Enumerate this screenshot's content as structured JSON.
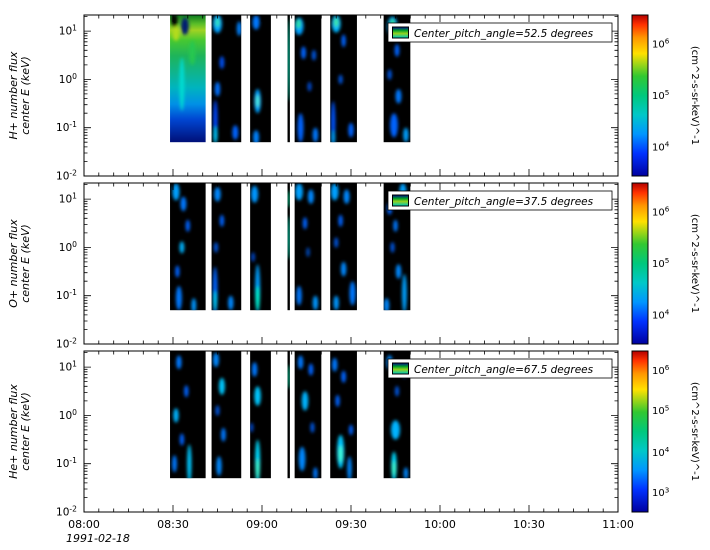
{
  "figure": {
    "background": "#ffffff",
    "axis_color": "#000000",
    "x_axis": {
      "tick_labels": [
        "08:00",
        "08:30",
        "09:00",
        "09:30",
        "10:00",
        "10:30",
        "11:00"
      ],
      "date_label": "1991-02-18",
      "duration_minutes": 180,
      "major_tick_minutes": 30,
      "minor_tick_minutes": 5
    },
    "colorbar_gradient": [
      [
        "0",
        "#b40000"
      ],
      [
        "0.06",
        "#ff3200"
      ],
      [
        "0.14",
        "#ff9600"
      ],
      [
        "0.24",
        "#ffe100"
      ],
      [
        "0.38",
        "#32c832"
      ],
      [
        "0.5",
        "#00c87d"
      ],
      [
        "0.62",
        "#00c8c8"
      ],
      [
        "0.74",
        "#0096ff"
      ],
      [
        "0.86",
        "#0032ff"
      ],
      [
        "1",
        "#0000a0"
      ]
    ],
    "legend_icon_gradient": [
      [
        "0",
        "#001e82"
      ],
      [
        "0.3",
        "#00a028"
      ],
      [
        "0.6",
        "#96d21e"
      ],
      [
        "1",
        "#00c8b4"
      ]
    ]
  },
  "chart_data": [
    {
      "type": "heatmap",
      "panel_id": "h-plus",
      "species": "H+",
      "ylabel_lines": [
        "H+ number flux",
        "center E (keV)"
      ],
      "y_scale": "log",
      "ylim_log10": [
        -2,
        1.3333
      ],
      "y_tick_exponents": [
        1,
        0,
        -1,
        -2
      ],
      "legend_label": "Center_pitch_angle=52.5 degrees",
      "colorbar": {
        "unit_label": "(cm^2-s-sr-keV)^-1",
        "tick_exponents": [
          6,
          5,
          4
        ],
        "tick_fracs_from_top": [
          0.18,
          0.5,
          0.82
        ]
      },
      "segments_min": [
        [
          29,
          41
        ],
        [
          43,
          53
        ],
        [
          56,
          63
        ],
        [
          68.6,
          69.4
        ],
        [
          71,
          80
        ],
        [
          83,
          92
        ],
        [
          101,
          110
        ]
      ],
      "segment_bottom_log10": -1.3,
      "segment_fill_gradient": {
        "segment": 0,
        "stops": [
          [
            "0",
            "#0a7820"
          ],
          [
            "0.07",
            "#5abe28"
          ],
          [
            "0.12",
            "#a0d223"
          ],
          [
            "0.2",
            "#46c832"
          ],
          [
            "0.32",
            "#1eb45a"
          ],
          [
            "0.45",
            "#0fb48c"
          ],
          [
            "0.57",
            "#00b4be"
          ],
          [
            "0.7",
            "#0090e6"
          ],
          [
            "0.82",
            "#0046d2"
          ],
          [
            "1",
            "#000f78"
          ]
        ]
      },
      "blob_format": [
        "t_minutes_from_0800",
        "log10_energy_keV",
        "width_minutes",
        "height_decades",
        "color"
      ],
      "blobs": [
        [
          30.5,
          1.22,
          2,
          0.28,
          "#000000"
        ],
        [
          34,
          1.1,
          2.6,
          0.35,
          "#001a70"
        ],
        [
          31,
          0.95,
          2.2,
          0.3,
          "#b4dc1e"
        ],
        [
          33,
          -0.1,
          1.6,
          1.1,
          "#00dcd2"
        ],
        [
          36.5,
          0.55,
          2.0,
          0.5,
          "#28c850"
        ],
        [
          45,
          1.15,
          3,
          0.38,
          "#00a0ff"
        ],
        [
          45,
          1.18,
          1.6,
          0.2,
          "#30e0c0"
        ],
        [
          46.5,
          0.35,
          1.6,
          0.26,
          "#0050f0"
        ],
        [
          45,
          -0.2,
          1.8,
          0.3,
          "#0070ff"
        ],
        [
          44.3,
          -0.85,
          1.5,
          0.85,
          "#0046ff"
        ],
        [
          44.3,
          -1.15,
          1.4,
          0.35,
          "#00c8ff"
        ],
        [
          51,
          -1.1,
          2,
          0.3,
          "#0064ff"
        ],
        [
          52.3,
          1.05,
          1.6,
          0.3,
          "#0082ff"
        ],
        [
          58,
          1.18,
          2.4,
          0.3,
          "#0078ff"
        ],
        [
          58.5,
          -0.45,
          2.2,
          0.5,
          "#00a0ff"
        ],
        [
          58.5,
          -0.45,
          1.2,
          0.26,
          "#50f0dc"
        ],
        [
          58,
          -1.2,
          2,
          0.3,
          "#0082ff"
        ],
        [
          69,
          0.4,
          0.8,
          1.7,
          "#00dcb4"
        ],
        [
          72.5,
          1.1,
          3,
          0.36,
          "#00a0ff"
        ],
        [
          72.3,
          1.15,
          1.6,
          0.2,
          "#2be2a0"
        ],
        [
          74,
          0.55,
          1.7,
          0.26,
          "#0064ff"
        ],
        [
          77.5,
          0.5,
          1.5,
          0.22,
          "#0055dd"
        ],
        [
          76,
          -0.15,
          1.4,
          0.2,
          "#0046c8"
        ],
        [
          73,
          -1.0,
          2,
          0.6,
          "#0064ff"
        ],
        [
          78,
          -1.15,
          1.8,
          0.3,
          "#0078ff"
        ],
        [
          85,
          1.15,
          3,
          0.36,
          "#00b4ff"
        ],
        [
          85,
          1.18,
          1.6,
          0.2,
          "#3ce6a0"
        ],
        [
          87.5,
          0.8,
          1.5,
          0.26,
          "#0064ff"
        ],
        [
          86.5,
          0.0,
          1.4,
          0.2,
          "#0055dd"
        ],
        [
          84,
          -0.9,
          1.5,
          0.9,
          "#0055ff"
        ],
        [
          84,
          -1.2,
          1.4,
          0.3,
          "#00a0ff"
        ],
        [
          90,
          -1.05,
          1.8,
          0.3,
          "#0064ff"
        ],
        [
          104,
          1.1,
          3.4,
          0.4,
          "#00a0ff"
        ],
        [
          104,
          1.15,
          1.8,
          0.22,
          "#2bd98c"
        ],
        [
          105.5,
          0.6,
          1.6,
          0.26,
          "#0064ff"
        ],
        [
          103,
          0.1,
          1.5,
          0.22,
          "#0055dd"
        ],
        [
          106,
          -0.35,
          2,
          0.3,
          "#0078ff"
        ],
        [
          104.5,
          -0.95,
          2.6,
          0.5,
          "#0064ff"
        ],
        [
          108.5,
          -1.15,
          1.8,
          0.3,
          "#00a0ff"
        ]
      ]
    },
    {
      "type": "heatmap",
      "panel_id": "o-plus",
      "species": "O+",
      "ylabel_lines": [
        "O+ number flux",
        "center E (keV)"
      ],
      "y_scale": "log",
      "ylim_log10": [
        -2,
        1.3333
      ],
      "y_tick_exponents": [
        1,
        0,
        -1,
        -2
      ],
      "legend_label": "Center_pitch_angle=37.5 degrees",
      "colorbar": {
        "unit_label": "(cm^2-s-sr-keV)^-1",
        "tick_exponents": [
          6,
          5,
          4
        ],
        "tick_fracs_from_top": [
          0.18,
          0.5,
          0.82
        ]
      },
      "segments_min": [
        [
          29,
          41
        ],
        [
          43,
          53
        ],
        [
          56,
          63
        ],
        [
          68.6,
          69.4
        ],
        [
          71,
          80
        ],
        [
          83,
          92
        ],
        [
          101,
          110
        ]
      ],
      "segment_bottom_log10": -1.3,
      "blob_format": [
        "t_minutes_from_0800",
        "log10_energy_keV",
        "width_minutes",
        "height_decades",
        "color"
      ],
      "blobs": [
        [
          31,
          1.15,
          2.4,
          0.35,
          "#00a0ff"
        ],
        [
          33.5,
          0.9,
          2,
          0.3,
          "#0078ff"
        ],
        [
          35,
          0.45,
          1.5,
          0.25,
          "#0064ff"
        ],
        [
          33,
          0.0,
          1.6,
          0.25,
          "#00b4ff"
        ],
        [
          31.5,
          -0.5,
          1.5,
          0.25,
          "#0064ff"
        ],
        [
          32,
          -1.05,
          2,
          0.5,
          "#0078ff"
        ],
        [
          37,
          -1.2,
          1.6,
          0.3,
          "#0096ff"
        ],
        [
          45,
          1.1,
          2.2,
          0.3,
          "#0088ff"
        ],
        [
          46.5,
          0.55,
          1.5,
          0.25,
          "#0064ff"
        ],
        [
          44.5,
          0.0,
          1.4,
          0.22,
          "#0055dd"
        ],
        [
          44.2,
          -0.9,
          1.6,
          1.0,
          "#0064ff"
        ],
        [
          44.2,
          -1.1,
          1.2,
          0.4,
          "#00d2ff"
        ],
        [
          49.5,
          -1.15,
          1.8,
          0.3,
          "#0088ff"
        ],
        [
          57.5,
          1.1,
          2.4,
          0.35,
          "#0096ff"
        ],
        [
          58.5,
          -0.85,
          1.7,
          1.0,
          "#00a0ff"
        ],
        [
          58.5,
          -1.05,
          1.2,
          0.5,
          "#00ffd2"
        ],
        [
          57,
          -0.2,
          1.3,
          0.2,
          "#0046c8"
        ],
        [
          69,
          0.2,
          0.8,
          0.9,
          "#00dcb4"
        ],
        [
          69,
          1.0,
          0.8,
          0.35,
          "#00c88c"
        ],
        [
          72.5,
          1.15,
          2.6,
          0.35,
          "#00a0ff"
        ],
        [
          76.5,
          1.05,
          2,
          0.3,
          "#0088ff"
        ],
        [
          74.5,
          0.5,
          1.5,
          0.25,
          "#0064ff"
        ],
        [
          75.5,
          -0.1,
          1.3,
          0.2,
          "#0046b4"
        ],
        [
          72.5,
          -1.0,
          1.8,
          0.4,
          "#0078ff"
        ],
        [
          78,
          -1.15,
          1.8,
          0.3,
          "#0096ff"
        ],
        [
          84.5,
          1.15,
          2.6,
          0.35,
          "#00a0ff"
        ],
        [
          88.5,
          1.05,
          2,
          0.3,
          "#0088ff"
        ],
        [
          86.5,
          0.55,
          1.5,
          0.25,
          "#0064ff"
        ],
        [
          85,
          0.1,
          1.4,
          0.22,
          "#0055dd"
        ],
        [
          87.5,
          -0.45,
          1.8,
          0.3,
          "#0088ff"
        ],
        [
          85,
          -1.15,
          1.8,
          0.3,
          "#0096ff"
        ],
        [
          90.5,
          -0.95,
          2,
          0.5,
          "#0078ff"
        ],
        [
          107.5,
          1.15,
          2.4,
          0.35,
          "#00a0ff"
        ],
        [
          103,
          0.8,
          1.6,
          0.25,
          "#0064ff"
        ],
        [
          105,
          0.45,
          1.5,
          0.25,
          "#0078ff"
        ],
        [
          104,
          0.0,
          1.4,
          0.22,
          "#0055dd"
        ],
        [
          106,
          -0.5,
          1.8,
          0.3,
          "#0088ff"
        ],
        [
          108,
          -0.95,
          1.6,
          0.8,
          "#00a0ff"
        ],
        [
          102,
          -1.2,
          1.8,
          0.3,
          "#0088ff"
        ]
      ]
    },
    {
      "type": "heatmap",
      "panel_id": "he-plus",
      "species": "He+",
      "ylabel_lines": [
        "He+ number flux",
        "center E (keV)"
      ],
      "y_scale": "log",
      "ylim_log10": [
        -2,
        1.3333
      ],
      "y_tick_exponents": [
        1,
        0,
        -1,
        -2
      ],
      "legend_label": "Center_pitch_angle=67.5 degrees",
      "colorbar": {
        "unit_label": "(cm^2-s-sr-keV)^-1",
        "tick_exponents": [
          6,
          5,
          4,
          3
        ],
        "tick_fracs_from_top": [
          0.12,
          0.37,
          0.63,
          0.88
        ]
      },
      "segments_min": [
        [
          29,
          41
        ],
        [
          43,
          53
        ],
        [
          56,
          63
        ],
        [
          68.6,
          69.4
        ],
        [
          71,
          80
        ],
        [
          83,
          92
        ],
        [
          101,
          110
        ]
      ],
      "segment_bottom_log10": -1.3,
      "blob_format": [
        "t_minutes_from_0800",
        "log10_energy_keV",
        "width_minutes",
        "height_decades",
        "color"
      ],
      "blobs": [
        [
          32,
          1.1,
          1.8,
          0.28,
          "#0078ff"
        ],
        [
          34.5,
          0.5,
          1.5,
          0.25,
          "#0064ff"
        ],
        [
          31,
          0.0,
          1.8,
          0.3,
          "#00b4ff"
        ],
        [
          33,
          -0.5,
          1.5,
          0.25,
          "#0064ff"
        ],
        [
          35.5,
          -1.0,
          1.5,
          0.8,
          "#00c8ff"
        ],
        [
          30.5,
          -1.0,
          1.6,
          0.35,
          "#0078ff"
        ],
        [
          44.5,
          1.15,
          2,
          0.3,
          "#0088ff"
        ],
        [
          46.5,
          0.6,
          2,
          0.35,
          "#00c8ff"
        ],
        [
          45,
          0.1,
          1.4,
          0.22,
          "#0055dd"
        ],
        [
          47,
          -0.4,
          1.6,
          0.28,
          "#0078ff"
        ],
        [
          45.5,
          -1.05,
          1.8,
          0.4,
          "#0088ff"
        ],
        [
          57.5,
          0.95,
          1.8,
          0.3,
          "#0078ff"
        ],
        [
          58.5,
          0.4,
          2.2,
          0.4,
          "#00c8ff"
        ],
        [
          58.5,
          -0.95,
          1.7,
          0.9,
          "#00dcff"
        ],
        [
          58.5,
          -1.1,
          1.2,
          0.4,
          "#40ffd2"
        ],
        [
          56.5,
          -0.25,
          1.3,
          0.2,
          "#0046c8"
        ],
        [
          69,
          0.8,
          0.8,
          0.5,
          "#00c896"
        ],
        [
          73,
          1.1,
          1.8,
          0.28,
          "#0078ff"
        ],
        [
          76.5,
          0.95,
          1.6,
          0.25,
          "#0064ff"
        ],
        [
          74.5,
          0.3,
          2.2,
          0.4,
          "#00b4ff"
        ],
        [
          77,
          -0.25,
          1.4,
          0.22,
          "#0055dd"
        ],
        [
          73.5,
          -0.9,
          2.2,
          0.5,
          "#0088ff"
        ],
        [
          78,
          -1.2,
          1.5,
          0.25,
          "#0078ff"
        ],
        [
          84.5,
          1.05,
          1.8,
          0.28,
          "#0078ff"
        ],
        [
          87.5,
          0.8,
          1.6,
          0.25,
          "#0064ff"
        ],
        [
          85.5,
          0.3,
          1.5,
          0.25,
          "#0064ff"
        ],
        [
          86.5,
          -0.75,
          2.4,
          0.7,
          "#00c8ff"
        ],
        [
          86.5,
          -0.8,
          1.4,
          0.35,
          "#40ffd2"
        ],
        [
          90,
          -0.3,
          1.4,
          0.22,
          "#0064ff"
        ],
        [
          89.5,
          -1.1,
          1.5,
          0.5,
          "#0088ff"
        ],
        [
          103,
          1.1,
          2,
          0.3,
          "#0088ff"
        ],
        [
          108,
          0.9,
          1.5,
          0.25,
          "#0064ff"
        ],
        [
          105.5,
          0.5,
          1.4,
          0.22,
          "#0055dd"
        ],
        [
          105,
          -0.3,
          3,
          0.4,
          "#00b4ff"
        ],
        [
          104.5,
          -1.05,
          1.8,
          0.6,
          "#00dcff"
        ],
        [
          104.5,
          -1.1,
          1.2,
          0.3,
          "#40ffcc"
        ],
        [
          108.5,
          -1.2,
          1.5,
          0.25,
          "#0088ff"
        ]
      ]
    }
  ]
}
